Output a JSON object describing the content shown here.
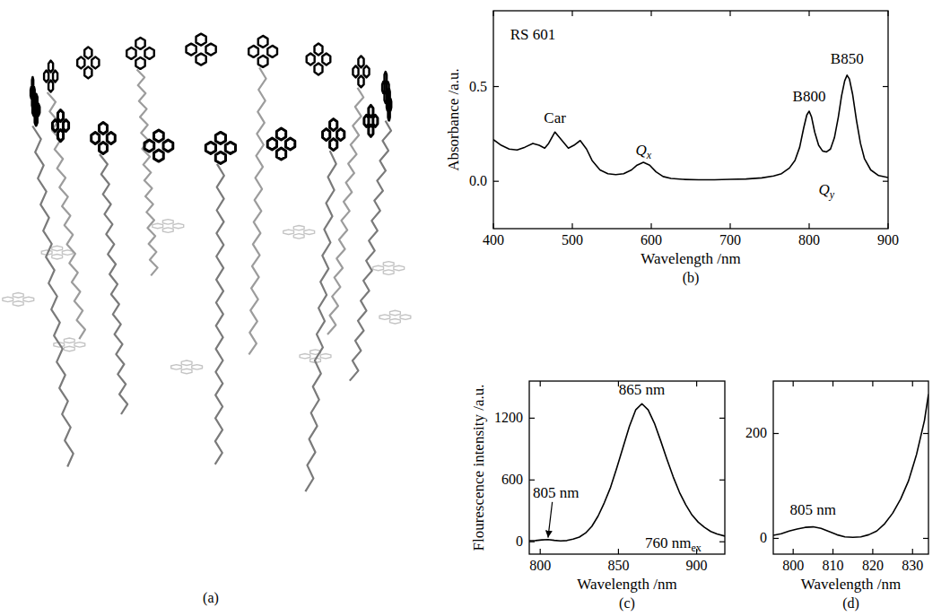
{
  "structure": {
    "label": "(a)"
  },
  "chart_data": [
    {
      "type": "line",
      "panel_label": "(b)",
      "x_label": "Wavelength /nm",
      "y_label": "Absorbance /a.u.",
      "color": "#000000",
      "xlim": [
        400,
        900
      ],
      "xticks": [
        400,
        500,
        600,
        700,
        800,
        900
      ],
      "ylim": [
        -0.25,
        0.9
      ],
      "yticks": [
        {
          "value": 0,
          "label": "0.0"
        },
        {
          "value": 0.5,
          "label": "0.5"
        }
      ],
      "x": [
        400,
        410,
        420,
        430,
        440,
        450,
        458,
        465,
        470,
        478,
        486,
        495,
        502,
        510,
        518,
        525,
        535,
        545,
        555,
        565,
        575,
        582,
        590,
        598,
        606,
        615,
        625,
        640,
        660,
        680,
        700,
        720,
        740,
        755,
        765,
        775,
        782,
        788,
        793,
        797,
        800,
        803,
        807,
        812,
        817,
        822,
        827,
        832,
        837,
        841,
        845,
        848,
        851,
        855,
        860,
        865,
        870,
        878,
        888,
        900
      ],
      "values": [
        0.22,
        0.19,
        0.17,
        0.165,
        0.18,
        0.2,
        0.19,
        0.175,
        0.2,
        0.26,
        0.22,
        0.175,
        0.19,
        0.215,
        0.17,
        0.11,
        0.06,
        0.04,
        0.035,
        0.04,
        0.06,
        0.085,
        0.1,
        0.085,
        0.05,
        0.025,
        0.015,
        0.01,
        0.008,
        0.008,
        0.01,
        0.012,
        0.018,
        0.028,
        0.04,
        0.07,
        0.11,
        0.18,
        0.28,
        0.35,
        0.37,
        0.34,
        0.26,
        0.19,
        0.16,
        0.155,
        0.17,
        0.23,
        0.34,
        0.45,
        0.53,
        0.56,
        0.54,
        0.46,
        0.32,
        0.2,
        0.12,
        0.06,
        0.03,
        0.02
      ],
      "annotations": [
        {
          "text": "RS 601",
          "x": 450,
          "y": 0.75
        },
        {
          "text": "Car",
          "x": 478,
          "y": 0.31
        },
        {
          "text": "Q",
          "sub": "x",
          "x": 590,
          "y": 0.14
        },
        {
          "text": "B800",
          "x": 800,
          "y": 0.42
        },
        {
          "text": "B850",
          "x": 848,
          "y": 0.62
        },
        {
          "text": "Q",
          "sub": "y",
          "x": 822,
          "y": -0.07
        }
      ]
    },
    {
      "type": "line",
      "panel_label": "(c)",
      "x_label": "Wavelength /nm",
      "y_label": "Flourescence intensity /a.u.",
      "color": "#000000",
      "xlim": [
        793,
        918
      ],
      "xticks": [
        800,
        850,
        900
      ],
      "ylim": [
        -120,
        1560
      ],
      "yticks": [
        0,
        600,
        1200
      ],
      "x": [
        793,
        797,
        801,
        805,
        809,
        813,
        817,
        821,
        825,
        829,
        833,
        837,
        841,
        845,
        849,
        853,
        857,
        861,
        865,
        869,
        873,
        877,
        881,
        885,
        889,
        893,
        897,
        901,
        905,
        909,
        913,
        918
      ],
      "values": [
        10,
        12,
        18,
        22,
        14,
        8,
        12,
        25,
        45,
        85,
        150,
        250,
        380,
        530,
        720,
        920,
        1120,
        1280,
        1340,
        1280,
        1150,
        980,
        800,
        630,
        480,
        360,
        260,
        190,
        140,
        100,
        75,
        55
      ],
      "annotations": [
        {
          "text": "865 nm",
          "x": 865,
          "y": 1430
        },
        {
          "text": "805 nm",
          "x": 810,
          "y": 430,
          "arrow_x": 805,
          "arrow_y": 40
        },
        {
          "text": "760 nm",
          "sub": "ex",
          "x": 885,
          "y": -60
        }
      ]
    },
    {
      "type": "line",
      "panel_label": "(d)",
      "x_label": "Wavelength /nm",
      "color": "#000000",
      "xlim": [
        795,
        834
      ],
      "xticks": [
        800,
        810,
        820,
        830
      ],
      "ylim": [
        -30,
        300
      ],
      "yticks": [
        0,
        200
      ],
      "x": [
        795,
        797,
        799,
        801,
        803,
        805,
        807,
        809,
        811,
        813,
        815,
        817,
        819,
        821,
        823,
        825,
        827,
        829,
        831,
        833,
        834
      ],
      "values": [
        6,
        9,
        14,
        18,
        21,
        22,
        19,
        13,
        7,
        3,
        2,
        3,
        7,
        14,
        28,
        48,
        75,
        110,
        160,
        225,
        275
      ],
      "annotations": [
        {
          "text": "805 nm",
          "x": 805,
          "y": 45
        }
      ]
    }
  ]
}
